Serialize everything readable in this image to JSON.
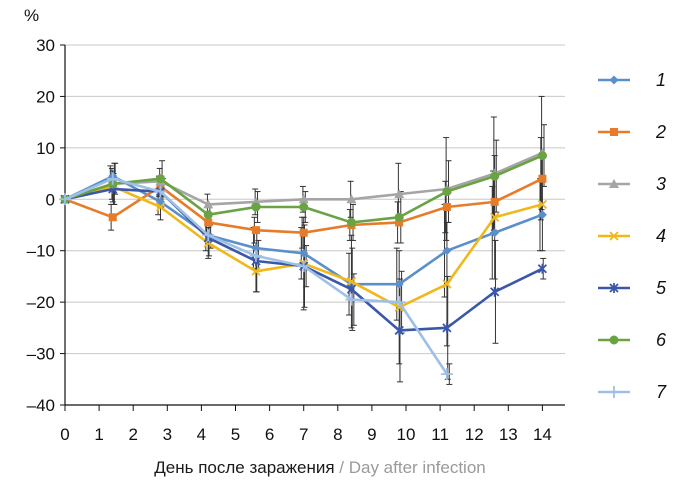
{
  "chart_data": {
    "type": "line",
    "ylabel": "%",
    "xlabel_ru": "День после заражения",
    "xlabel_sep": " / ",
    "xlabel_en": "Day after infection",
    "xlim": [
      0,
      15
    ],
    "ylim": [
      -40,
      30
    ],
    "xticks": [
      "0",
      "1",
      "2",
      "3",
      "4",
      "5",
      "6",
      "7",
      "8",
      "9",
      "10",
      "11",
      "12",
      "13",
      "14"
    ],
    "yticks": [
      {
        "value": 30,
        "label": "30"
      },
      {
        "value": 20,
        "label": "20"
      },
      {
        "value": 10,
        "label": "10"
      },
      {
        "value": 0,
        "label": "0"
      },
      {
        "value": -10,
        "label": "–10"
      },
      {
        "value": -20,
        "label": "–20"
      },
      {
        "value": -30,
        "label": "–30"
      },
      {
        "value": -40,
        "label": "–40"
      }
    ],
    "x": [
      0,
      1.4,
      2.8,
      4.2,
      5.6,
      7.0,
      8.4,
      9.8,
      11.2,
      12.6,
      14.0
    ],
    "series": [
      {
        "name": "1",
        "color": "#5b8fc9",
        "marker": "diamond",
        "values": [
          0,
          4.5,
          -0.5,
          -7,
          -9.5,
          -10.5,
          -16.5,
          -16.5,
          -10,
          -6.5,
          -3
        ],
        "errors": [
          0,
          2,
          2.5,
          3,
          4,
          5,
          6,
          7,
          9,
          9,
          7
        ]
      },
      {
        "name": "2",
        "color": "#e67b2a",
        "marker": "square",
        "values": [
          0,
          -3.5,
          2.5,
          -4.5,
          -6,
          -6.5,
          -5,
          -4.5,
          -1.5,
          -0.5,
          4
        ],
        "errors": [
          0,
          2.5,
          2,
          2,
          2.5,
          3,
          3,
          4,
          5,
          6,
          8
        ]
      },
      {
        "name": "3",
        "color": "#a5a5a5",
        "marker": "triangle",
        "values": [
          0,
          3,
          3.5,
          -1,
          -0.5,
          0,
          0,
          1,
          2,
          5,
          9
        ],
        "errors": [
          0,
          3,
          2.5,
          2,
          2.5,
          2.5,
          3.5,
          6,
          10,
          11,
          11
        ]
      },
      {
        "name": "4",
        "color": "#f0b81a",
        "marker": "x",
        "values": [
          0,
          2.5,
          -1.5,
          -8.5,
          -14,
          -12.5,
          -16,
          -21,
          -16.5,
          -3.5,
          -1
        ],
        "errors": [
          0,
          3,
          2.5,
          3,
          4,
          9,
          9,
          11,
          12,
          12,
          9
        ]
      },
      {
        "name": "5",
        "color": "#3b57a8",
        "marker": "star",
        "values": [
          0,
          2,
          1.5,
          -7.5,
          -12,
          -13,
          -17.5,
          -25.5,
          -25,
          -18,
          -13.5
        ],
        "errors": [
          0,
          3,
          3,
          3.5,
          6,
          8,
          8,
          10,
          10,
          10,
          2
        ]
      },
      {
        "name": "6",
        "color": "#6aa343",
        "marker": "circle",
        "values": [
          0,
          3,
          4,
          -3,
          -1.5,
          -1.5,
          -4.5,
          -3.5,
          1.5,
          4.5,
          8.5
        ],
        "errors": [
          0,
          4,
          3.5,
          2,
          3,
          3,
          3.5,
          5,
          6,
          7,
          6
        ]
      },
      {
        "name": "7",
        "color": "#9fc0e6",
        "marker": "plus",
        "values": [
          0,
          4,
          1.5,
          -7,
          -11,
          -13,
          -19.5,
          -20,
          -34,
          null,
          null
        ],
        "errors": [
          0,
          3,
          2.5,
          2.5,
          3,
          4,
          5,
          6,
          2,
          0,
          0
        ]
      }
    ]
  }
}
